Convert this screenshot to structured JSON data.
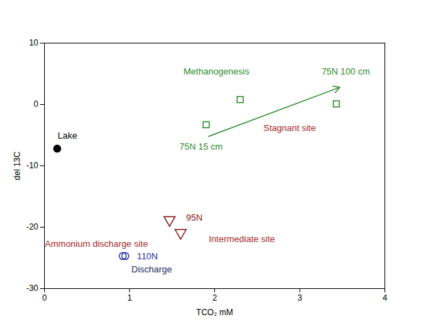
{
  "chart_data": {
    "type": "scatter",
    "x_label": "TCO₂ mM",
    "y_label": "del 13C",
    "xlim": [
      0,
      4
    ],
    "ylim": [
      -30,
      10
    ],
    "xticks": [
      0,
      1,
      2,
      3,
      4
    ],
    "yticks": [
      -30,
      -20,
      -10,
      0,
      10
    ],
    "series": [
      {
        "color": "#000000",
        "marker": "filled_circle",
        "x": [
          0.15
        ],
        "y": [
          -7.2
        ]
      },
      {
        "color": "#2e8b2e",
        "marker": "square",
        "x": [
          1.9,
          2.3,
          3.43
        ],
        "y": [
          -3.3,
          0.8,
          0.1
        ]
      },
      {
        "color": "#8b1a1a",
        "marker": "triangle_down",
        "x": [
          1.47,
          1.6
        ],
        "y": [
          -18.8,
          -20.9
        ]
      },
      {
        "color": "#2233aa",
        "marker": "circle",
        "x": [
          0.92,
          0.95
        ],
        "y": [
          -24.7,
          -24.7
        ]
      }
    ],
    "annotations": [
      {
        "text": "Lake",
        "x": 0.27,
        "y": -5.1,
        "color": "#000000"
      },
      {
        "text": "Methanogenesis",
        "x": 2.02,
        "y": 5.4,
        "color": "#2e8b2e"
      },
      {
        "text": "75N 100 cm",
        "x": 3.54,
        "y": 5.4,
        "color": "#2e8b2e"
      },
      {
        "text": "75N 15 cm",
        "x": 1.84,
        "y": -6.9,
        "color": "#2e8b2e"
      },
      {
        "text": "Stagnant site",
        "x": 2.88,
        "y": -3.9,
        "color": "#a52a2a"
      },
      {
        "text": "95N",
        "x": 1.76,
        "y": -18.5,
        "color": "#8b1a1a"
      },
      {
        "text": "Intermediate site",
        "x": 2.32,
        "y": -22.0,
        "color": "#a52a2a"
      },
      {
        "text": "Ammonium discharge site",
        "x": 0.61,
        "y": -22.7,
        "color": "#a52a2a"
      },
      {
        "text": "110N",
        "x": 1.21,
        "y": -24.8,
        "color": "#2233aa"
      },
      {
        "text": "Discharge",
        "x": 1.26,
        "y": -26.9,
        "color": "#1a2b5e"
      }
    ],
    "arrows": [
      {
        "x1": 1.93,
        "y1": -5.2,
        "x2": 3.47,
        "y2": 2.8,
        "color": "#2e8b2e"
      }
    ]
  }
}
